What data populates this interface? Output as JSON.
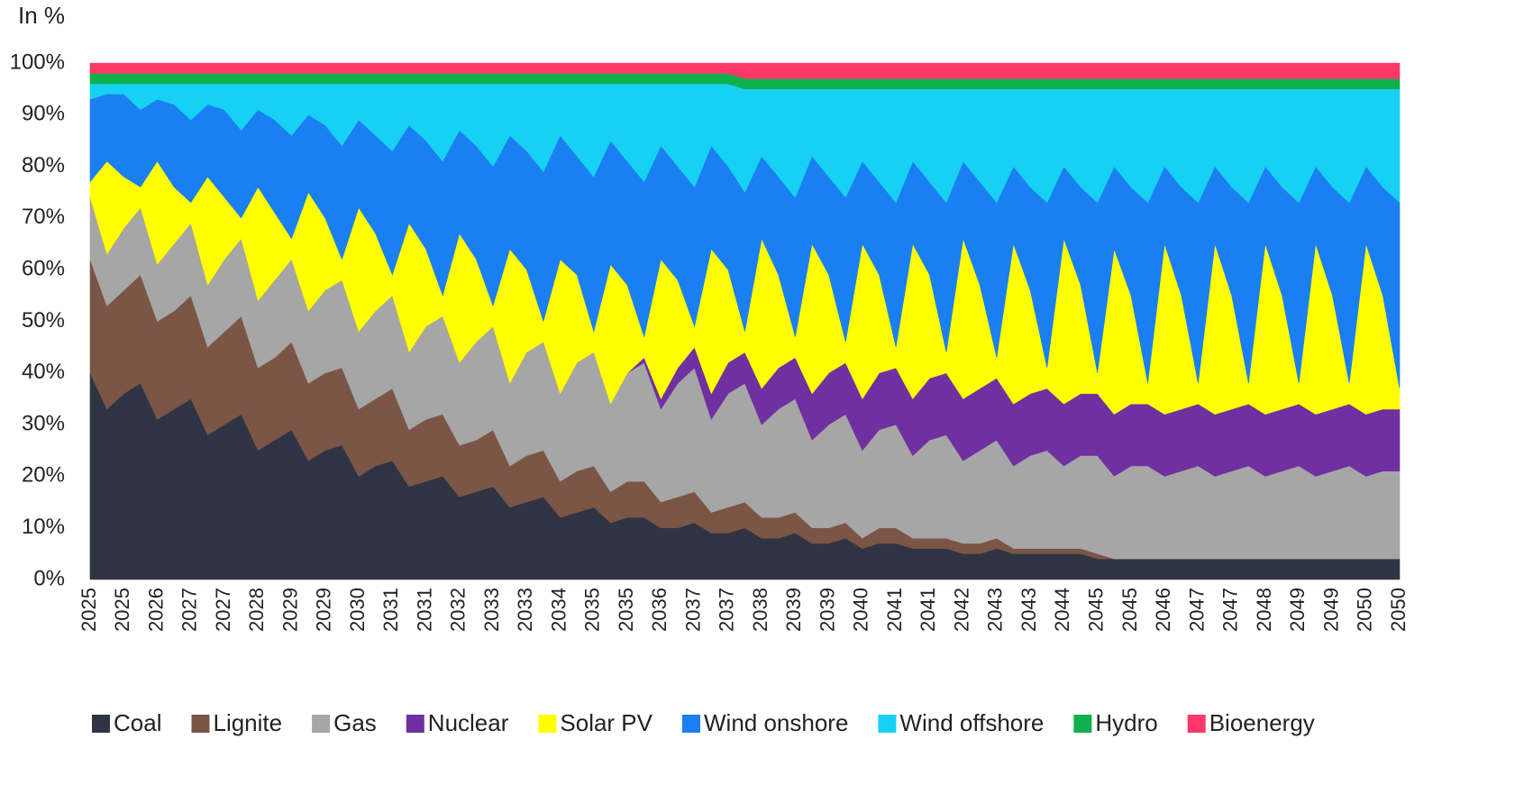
{
  "chart_data": {
    "type": "stacked-area",
    "y_label": "In %",
    "categories": [
      "2025",
      null,
      "2025",
      null,
      "2026",
      null,
      "2027",
      null,
      "2027",
      null,
      "2028",
      null,
      "2029",
      null,
      "2029",
      null,
      "2030",
      null,
      "2031",
      null,
      "2031",
      null,
      "2032",
      null,
      "2033",
      null,
      "2033",
      null,
      "2034",
      null,
      "2035",
      null,
      "2035",
      null,
      "2036",
      null,
      "2037",
      null,
      "2037",
      null,
      "2038",
      null,
      "2039",
      null,
      "2039",
      null,
      "2040",
      null,
      "2041",
      null,
      "2041",
      null,
      "2042",
      null,
      "2043",
      null,
      "2043",
      null,
      "2044",
      null,
      "2045",
      null,
      "2045",
      null,
      "2046",
      null,
      "2047",
      null,
      "2047",
      null,
      "2048",
      null,
      "2049",
      null,
      "2049",
      null,
      "2050",
      null,
      "2050"
    ],
    "ylim": [
      0,
      100
    ],
    "yticks": [
      {
        "value": 0,
        "label": "0%"
      },
      {
        "value": 10,
        "label": "10%"
      },
      {
        "value": 20,
        "label": "20%"
      },
      {
        "value": 30,
        "label": "30%"
      },
      {
        "value": 40,
        "label": "40%"
      },
      {
        "value": 50,
        "label": "50%"
      },
      {
        "value": 60,
        "label": "60%"
      },
      {
        "value": 70,
        "label": "70%"
      },
      {
        "value": 80,
        "label": "80%"
      },
      {
        "value": 90,
        "label": "90%"
      },
      {
        "value": 100,
        "label": "100%"
      }
    ],
    "legend": "bottom",
    "series": [
      {
        "name": "Coal",
        "color": "#2e3444",
        "values": [
          40,
          33,
          36,
          38,
          31,
          33,
          35,
          28,
          30,
          32,
          25,
          27,
          29,
          23,
          25,
          26,
          20,
          22,
          23,
          18,
          19,
          20,
          16,
          17,
          18,
          14,
          15,
          16,
          12,
          13,
          14,
          11,
          12,
          12,
          10,
          10,
          11,
          9,
          9,
          10,
          8,
          8,
          9,
          7,
          7,
          8,
          6,
          7,
          7,
          6,
          6,
          6,
          5,
          5,
          6,
          5,
          5,
          5,
          5,
          5,
          4,
          4,
          4,
          4,
          4,
          4,
          4,
          4,
          4,
          4,
          4,
          4,
          4,
          4,
          4,
          4,
          4,
          4,
          4
        ]
      },
      {
        "name": "Lignite",
        "color": "#7b5546",
        "values": [
          22,
          20,
          20,
          21,
          19,
          19,
          20,
          17,
          18,
          19,
          16,
          16,
          17,
          15,
          15,
          15,
          13,
          13,
          14,
          11,
          12,
          12,
          10,
          10,
          11,
          8,
          9,
          9,
          7,
          8,
          8,
          6,
          7,
          7,
          5,
          6,
          6,
          4,
          5,
          5,
          4,
          4,
          4,
          3,
          3,
          3,
          2,
          3,
          3,
          2,
          2,
          2,
          2,
          2,
          2,
          1,
          1,
          1,
          1,
          1,
          1,
          0,
          0,
          0,
          0,
          0,
          0,
          0,
          0,
          0,
          0,
          0,
          0,
          0,
          0,
          0,
          0,
          0,
          0
        ]
      },
      {
        "name": "Gas",
        "color": "#a6a6a6",
        "values": [
          12,
          10,
          12,
          13,
          11,
          13,
          14,
          12,
          14,
          15,
          13,
          15,
          16,
          14,
          16,
          17,
          15,
          17,
          18,
          15,
          18,
          19,
          16,
          19,
          20,
          16,
          20,
          21,
          17,
          21,
          22,
          17,
          21,
          23,
          18,
          22,
          24,
          18,
          22,
          23,
          18,
          21,
          22,
          17,
          20,
          21,
          17,
          19,
          20,
          16,
          19,
          20,
          16,
          18,
          19,
          16,
          18,
          19,
          16,
          18,
          19,
          16,
          18,
          18,
          16,
          17,
          18,
          16,
          17,
          18,
          16,
          17,
          18,
          16,
          17,
          18,
          16,
          17,
          17
        ]
      },
      {
        "name": "Nuclear",
        "color": "#7030a0",
        "values": [
          0,
          0,
          0,
          0,
          0,
          0,
          0,
          0,
          0,
          0,
          0,
          0,
          0,
          0,
          0,
          0,
          0,
          0,
          0,
          0,
          0,
          0,
          0,
          0,
          0,
          0,
          0,
          0,
          0,
          0,
          0,
          0,
          0,
          1,
          2,
          3,
          4,
          5,
          6,
          6,
          7,
          8,
          8,
          9,
          10,
          10,
          10,
          11,
          11,
          11,
          12,
          12,
          12,
          12,
          12,
          12,
          12,
          12,
          12,
          12,
          12,
          12,
          12,
          12,
          12,
          12,
          12,
          12,
          12,
          12,
          12,
          12,
          12,
          12,
          12,
          12,
          12,
          12,
          12
        ]
      },
      {
        "name": "Solar PV",
        "color": "#ffff00",
        "values": [
          3,
          18,
          10,
          4,
          20,
          11,
          4,
          21,
          12,
          4,
          22,
          13,
          4,
          23,
          14,
          4,
          24,
          15,
          4,
          25,
          15,
          4,
          25,
          16,
          4,
          26,
          16,
          4,
          26,
          17,
          4,
          27,
          17,
          4,
          27,
          17,
          4,
          28,
          18,
          4,
          29,
          18,
          4,
          29,
          19,
          4,
          30,
          19,
          4,
          30,
          20,
          4,
          31,
          20,
          4,
          31,
          20,
          4,
          32,
          21,
          4,
          32,
          21,
          4,
          33,
          22,
          4,
          33,
          22,
          4,
          33,
          22,
          4,
          33,
          22,
          4,
          33,
          22,
          4
        ]
      },
      {
        "name": "Wind onshore",
        "color": "#1a7ff0",
        "values": [
          16,
          13,
          16,
          15,
          12,
          16,
          16,
          14,
          17,
          17,
          15,
          18,
          20,
          15,
          18,
          22,
          17,
          19,
          24,
          19,
          21,
          26,
          20,
          22,
          27,
          22,
          23,
          29,
          24,
          23,
          30,
          24,
          24,
          30,
          22,
          22,
          27,
          20,
          20,
          27,
          16,
          19,
          27,
          17,
          19,
          28,
          16,
          18,
          28,
          16,
          18,
          29,
          15,
          20,
          30,
          15,
          20,
          32,
          14,
          19,
          33,
          16,
          21,
          35,
          15,
          21,
          35,
          15,
          21,
          35,
          15,
          21,
          35,
          15,
          21,
          35,
          15,
          21,
          36
        ]
      },
      {
        "name": "Wind offshore",
        "color": "#17d1f5",
        "values": [
          3,
          2,
          2,
          5,
          3,
          4,
          7,
          4,
          5,
          9,
          5,
          7,
          10,
          6,
          8,
          12,
          7,
          10,
          13,
          8,
          11,
          15,
          9,
          12,
          16,
          10,
          13,
          17,
          10,
          14,
          18,
          11,
          15,
          19,
          12,
          16,
          20,
          12,
          16,
          20,
          13,
          17,
          21,
          13,
          17,
          21,
          14,
          18,
          22,
          14,
          18,
          22,
          14,
          18,
          22,
          15,
          19,
          22,
          15,
          19,
          22,
          15,
          19,
          22,
          15,
          19,
          22,
          15,
          19,
          22,
          15,
          19,
          22,
          15,
          19,
          22,
          15,
          19,
          22
        ]
      },
      {
        "name": "Hydro",
        "color": "#10b04c",
        "values": [
          2,
          2,
          2,
          2,
          2,
          2,
          2,
          2,
          2,
          2,
          2,
          2,
          2,
          2,
          2,
          2,
          2,
          2,
          2,
          2,
          2,
          2,
          2,
          2,
          2,
          2,
          2,
          2,
          2,
          2,
          2,
          2,
          2,
          2,
          2,
          2,
          2,
          2,
          2,
          2,
          2,
          2,
          2,
          2,
          2,
          2,
          2,
          2,
          2,
          2,
          2,
          2,
          2,
          2,
          2,
          2,
          2,
          2,
          2,
          2,
          2,
          2,
          2,
          2,
          2,
          2,
          2,
          2,
          2,
          2,
          2,
          2,
          2,
          2,
          2,
          2,
          2,
          2,
          2
        ]
      },
      {
        "name": "Bioenergy",
        "color": "#ff3868",
        "values": [
          2,
          2,
          2,
          2,
          2,
          2,
          2,
          2,
          2,
          2,
          2,
          2,
          2,
          2,
          2,
          2,
          2,
          2,
          2,
          2,
          2,
          2,
          2,
          2,
          2,
          2,
          2,
          2,
          2,
          2,
          2,
          2,
          2,
          2,
          2,
          2,
          2,
          2,
          2,
          3,
          3,
          3,
          3,
          3,
          3,
          3,
          3,
          3,
          3,
          3,
          3,
          3,
          3,
          3,
          3,
          3,
          3,
          3,
          3,
          3,
          3,
          3,
          3,
          3,
          3,
          3,
          3,
          3,
          3,
          3,
          3,
          3,
          3,
          3,
          3,
          3,
          3,
          3,
          3
        ]
      }
    ]
  }
}
